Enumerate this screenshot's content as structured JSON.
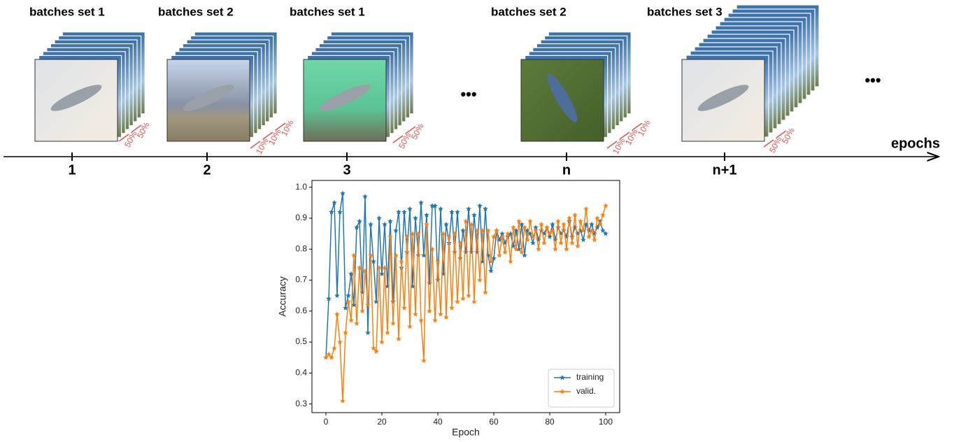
{
  "diagram": {
    "stages": [
      {
        "label": "batches set 1",
        "tick": "1",
        "percents": [
          "50%",
          "50%"
        ]
      },
      {
        "label": "batches set 2",
        "tick": "2",
        "percents": [
          "10%",
          "10%",
          "10%"
        ]
      },
      {
        "label": "batches set 1",
        "tick": "3",
        "percents": [
          "50%",
          "50%"
        ]
      },
      {
        "label": "batches set 2",
        "tick": "n",
        "percents": [
          "10%",
          "10%",
          "10%"
        ]
      },
      {
        "label": "batches set 3",
        "tick": "n+1",
        "percents": [
          "50%",
          "50%"
        ]
      }
    ],
    "ellipses": [
      "•••",
      "•••"
    ],
    "axis_label": "epochs"
  },
  "chart_data": {
    "type": "line",
    "xlabel": "Epoch",
    "ylabel": "Accuracy",
    "x": [
      0,
      1,
      2,
      3,
      4,
      5,
      6,
      7,
      8,
      9,
      10,
      11,
      12,
      13,
      14,
      15,
      16,
      17,
      18,
      19,
      20,
      21,
      22,
      23,
      24,
      25,
      26,
      27,
      28,
      29,
      30,
      31,
      32,
      33,
      34,
      35,
      36,
      37,
      38,
      39,
      40,
      41,
      42,
      43,
      44,
      45,
      46,
      47,
      48,
      49,
      50,
      51,
      52,
      53,
      54,
      55,
      56,
      57,
      58,
      59,
      60,
      61,
      62,
      63,
      64,
      65,
      66,
      67,
      68,
      69,
      70,
      71,
      72,
      73,
      74,
      75,
      76,
      77,
      78,
      79,
      80,
      81,
      82,
      83,
      84,
      85,
      86,
      87,
      88,
      89,
      90,
      91,
      92,
      93,
      94,
      95,
      96,
      97,
      98,
      99,
      100
    ],
    "series": [
      {
        "name": "training",
        "color": "#1f77b4",
        "values": [
          0.45,
          0.64,
          0.92,
          0.95,
          0.65,
          0.92,
          0.98,
          0.61,
          0.65,
          0.72,
          0.62,
          0.87,
          0.89,
          0.66,
          0.97,
          0.53,
          0.88,
          0.76,
          0.63,
          0.9,
          0.72,
          0.88,
          0.68,
          0.89,
          0.63,
          0.86,
          0.92,
          0.74,
          0.92,
          0.79,
          0.93,
          0.68,
          0.9,
          0.78,
          0.95,
          0.78,
          0.91,
          0.69,
          0.94,
          0.94,
          0.7,
          0.93,
          0.72,
          0.88,
          0.82,
          0.92,
          0.79,
          0.92,
          0.77,
          0.86,
          0.79,
          0.93,
          0.79,
          0.91,
          0.79,
          0.94,
          0.76,
          0.93,
          0.78,
          0.73,
          0.77,
          0.86,
          0.83,
          0.85,
          0.82,
          0.84,
          0.85,
          0.81,
          0.86,
          0.8,
          0.88,
          0.78,
          0.86,
          0.85,
          0.82,
          0.87,
          0.83,
          0.86,
          0.85,
          0.87,
          0.84,
          0.88,
          0.83,
          0.87,
          0.85,
          0.86,
          0.84,
          0.89,
          0.84,
          0.87,
          0.85,
          0.86,
          0.83,
          0.88,
          0.86,
          0.88,
          0.85,
          0.87,
          0.89,
          0.86,
          0.85
        ]
      },
      {
        "name": "valid.",
        "color": "#ff7f0e",
        "values": [
          0.45,
          0.46,
          0.45,
          0.48,
          0.59,
          0.5,
          0.31,
          0.53,
          0.63,
          0.57,
          0.78,
          0.56,
          0.74,
          0.6,
          0.73,
          0.62,
          0.78,
          0.48,
          0.47,
          0.74,
          0.5,
          0.74,
          0.53,
          0.84,
          0.56,
          0.78,
          0.51,
          0.76,
          0.61,
          0.84,
          0.55,
          0.85,
          0.59,
          0.85,
          0.57,
          0.44,
          0.88,
          0.6,
          0.8,
          0.57,
          0.76,
          0.59,
          0.85,
          0.58,
          0.84,
          0.61,
          0.85,
          0.63,
          0.82,
          0.64,
          0.89,
          0.65,
          0.88,
          0.63,
          0.86,
          0.7,
          0.86,
          0.66,
          0.86,
          0.76,
          0.84,
          0.86,
          0.78,
          0.84,
          0.79,
          0.85,
          0.76,
          0.87,
          0.8,
          0.89,
          0.79,
          0.87,
          0.83,
          0.89,
          0.84,
          0.86,
          0.8,
          0.88,
          0.82,
          0.87,
          0.85,
          0.86,
          0.8,
          0.89,
          0.82,
          0.88,
          0.8,
          0.9,
          0.82,
          0.91,
          0.81,
          0.89,
          0.86,
          0.93,
          0.84,
          0.86,
          0.83,
          0.9,
          0.88,
          0.91,
          0.94
        ]
      }
    ],
    "xlim": [
      -5,
      105
    ],
    "ylim": [
      0.272,
      1.022
    ],
    "xticks": [
      0,
      20,
      40,
      60,
      80,
      100
    ],
    "yticks": [
      0.3,
      0.4,
      0.5,
      0.6,
      0.7,
      0.8,
      0.9,
      {
        "value": 1,
        "label": "1.0"
      }
    ],
    "legend": "lower right"
  }
}
